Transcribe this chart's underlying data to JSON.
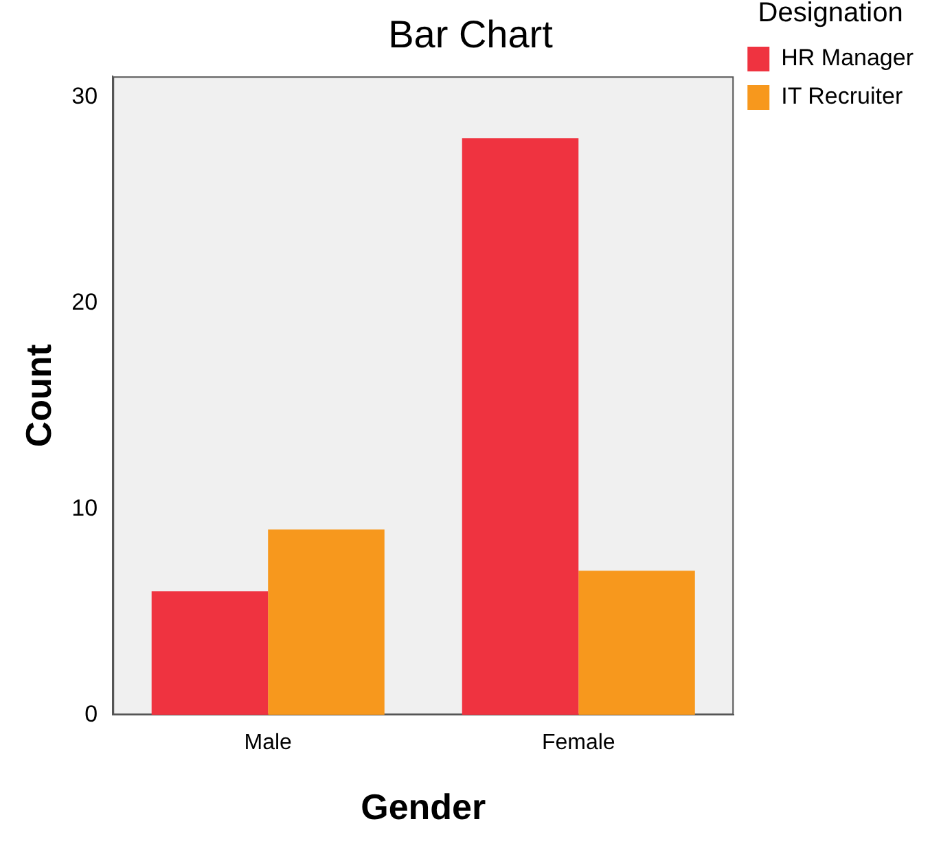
{
  "chart_data": {
    "type": "bar",
    "title": "Bar Chart",
    "xlabel": "Gender",
    "ylabel": "Count",
    "legend_title": "Designation",
    "categories": [
      "Male",
      "Female"
    ],
    "series": [
      {
        "name": "HR Manager",
        "color": "#ef3340",
        "values": [
          6,
          28
        ]
      },
      {
        "name": "IT Recruiter",
        "color": "#f7981d",
        "values": [
          9,
          7
        ]
      }
    ],
    "ylim": [
      0,
      31
    ],
    "yticks": [
      0,
      10,
      20,
      30
    ],
    "grid": false,
    "legend": "top right"
  }
}
